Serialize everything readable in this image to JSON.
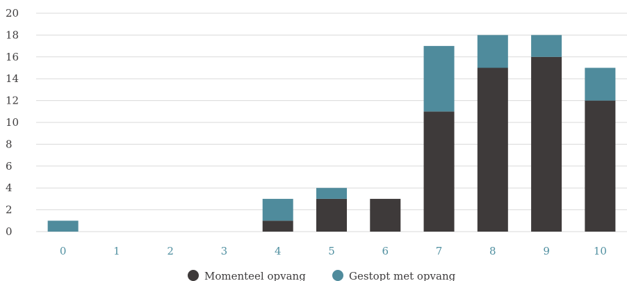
{
  "chart_data": {
    "type": "bar",
    "stacked": true,
    "categories": [
      "0",
      "1",
      "2",
      "3",
      "4",
      "5",
      "6",
      "7",
      "8",
      "9",
      "10"
    ],
    "series": [
      {
        "name": "Momenteel opvang",
        "color": "#3e3a3a",
        "values": [
          0,
          0,
          0,
          0,
          1,
          3,
          3,
          11,
          15,
          16,
          12
        ]
      },
      {
        "name": "Gestopt met opvang",
        "color": "#4f8b9c",
        "values": [
          1,
          0,
          0,
          0,
          2,
          1,
          0,
          6,
          3,
          2,
          3
        ]
      }
    ],
    "ylim": [
      0,
      20
    ],
    "yticks": [
      "0",
      "2",
      "4",
      "6",
      "8",
      "10",
      "12",
      "14",
      "16",
      "18",
      "20"
    ],
    "grid": true,
    "legend_position": "bottom"
  }
}
